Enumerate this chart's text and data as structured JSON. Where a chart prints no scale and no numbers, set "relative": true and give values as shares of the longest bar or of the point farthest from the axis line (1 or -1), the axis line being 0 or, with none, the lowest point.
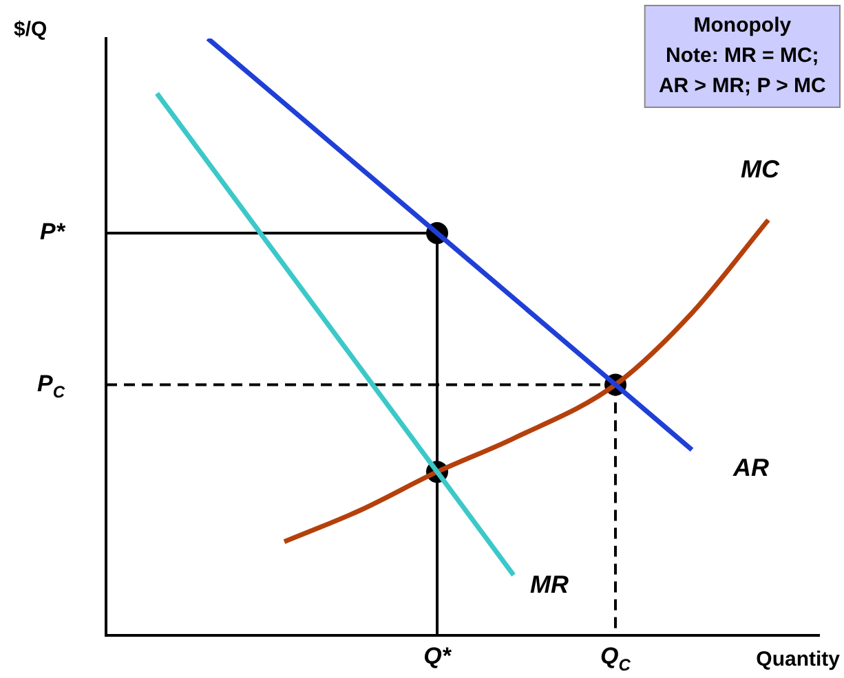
{
  "chart_data": {
    "type": "line",
    "relative": true,
    "xlabel": "Quantity",
    "ylabel": "$/Q",
    "categories": [
      null,
      null,
      null,
      null,
      null,
      null,
      null,
      null,
      null,
      null,
      null,
      null,
      null,
      "Q*",
      null,
      null,
      null,
      null,
      null,
      null,
      "Q$_{C}$",
      null,
      null,
      null,
      null,
      null,
      null,
      null,
      null
    ],
    "grid": false,
    "legend": false,
    "marker": "none",
    "line_style": "solid",
    "annotations": [
      "Monopoly\nNote: MR = MC;\nAR > MR; P > MC"
    ],
    "ref_lines": [
      {
        "axis": "y",
        "value": 0.674,
        "label": "P*",
        "color": "#000000",
        "line_style": "solid"
      },
      {
        "axis": "y",
        "value": 0.42,
        "label": "P$_{C}$",
        "color": "#000000",
        "line_style": "dashed"
      }
    ],
    "series": [
      {
        "name": "AR",
        "color": "#1f3fd6",
        "values": [
          null,
          null,
          null,
          null,
          1,
          null,
          null,
          null,
          null,
          null,
          null,
          null,
          null,
          0.674,
          null,
          null,
          null,
          null,
          null,
          null,
          0.42,
          null,
          null,
          0.311,
          null,
          null,
          null,
          null,
          null
        ]
      },
      {
        "name": "MR",
        "color": "#3cc8c8",
        "values": [
          null,
          null,
          0.908,
          null,
          null,
          null,
          null,
          null,
          null,
          null,
          null,
          null,
          null,
          0.274,
          null,
          null,
          0.101,
          null,
          null,
          null,
          null,
          null,
          null,
          null,
          null,
          null,
          null,
          null,
          null
        ]
      },
      {
        "name": "MC",
        "color": "#b5400c",
        "values": [
          null,
          null,
          null,
          null,
          null,
          null,
          null,
          0.157,
          null,
          null,
          0.21,
          null,
          null,
          0.274,
          null,
          null,
          0.33,
          null,
          null,
          null,
          0.42,
          null,
          null,
          0.54,
          null,
          null,
          0.696,
          null,
          null
        ]
      },
      {
        "color": "#000000",
        "line_style": "solid",
        "x": [
          "Q*",
          "Q*"
        ],
        "values": [
          0.674,
          0
        ]
      },
      {
        "color": "#000000",
        "line_style": "dashed",
        "x": [
          "Q$_{C}$",
          "Q$_{C}$"
        ],
        "values": [
          0.42,
          0
        ]
      },
      {
        "type": "scatter",
        "marker": "circle",
        "color": "#000000",
        "x": [
          "Q*",
          "Q*",
          "Q$_{C}$"
        ],
        "values": [
          0.674,
          0.274,
          0.42
        ]
      }
    ]
  }
}
